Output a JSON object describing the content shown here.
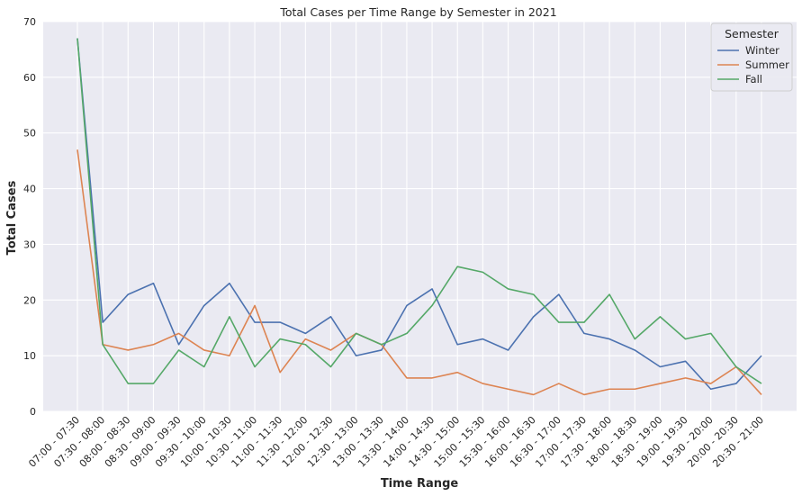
{
  "chart_data": {
    "type": "line",
    "title": "Total Cases per Time Range by Semester in 2021",
    "xlabel": "Time Range",
    "ylabel": "Total Cases",
    "ylim": [
      0,
      70
    ],
    "yticks": [
      0,
      10,
      20,
      30,
      40,
      50,
      60,
      70
    ],
    "grid": true,
    "legend_title": "Semester",
    "legend_position": "top-right",
    "categories": [
      "07:00 - 07:30",
      "07:30 - 08:00",
      "08:00 - 08:30",
      "08:30 - 09:00",
      "09:00 - 09:30",
      "09:30 - 10:00",
      "10:00 - 10:30",
      "10:30 - 11:00",
      "11:00 - 11:30",
      "11:30 - 12:00",
      "12:00 - 12:30",
      "12:30 - 13:00",
      "13:00 - 13:30",
      "13:30 - 14:00",
      "14:00 - 14:30",
      "14:30 - 15:00",
      "15:00 - 15:30",
      "15:30 - 16:00",
      "16:00 - 16:30",
      "16:30 - 17:00",
      "17:00 - 17:30",
      "17:30 - 18:00",
      "18:00 - 18:30",
      "18:30 - 19:00",
      "19:00 - 19:30",
      "19:30 - 20:00",
      "20:00 - 20:30",
      "20:30 - 21:00"
    ],
    "series": [
      {
        "name": "Winter",
        "color": "#4c72b0",
        "values": [
          67,
          16,
          21,
          23,
          12,
          19,
          23,
          16,
          16,
          14,
          17,
          10,
          11,
          19,
          22,
          12,
          13,
          11,
          17,
          21,
          14,
          13,
          11,
          8,
          9,
          4,
          5,
          10
        ]
      },
      {
        "name": "Summer",
        "color": "#dd8452",
        "values": [
          47,
          12,
          11,
          12,
          14,
          11,
          10,
          19,
          7,
          13,
          11,
          14,
          12,
          6,
          6,
          7,
          5,
          4,
          3,
          5,
          3,
          4,
          4,
          5,
          6,
          5,
          8,
          3
        ]
      },
      {
        "name": "Fall",
        "color": "#55a868",
        "values": [
          67,
          12,
          5,
          5,
          11,
          8,
          17,
          8,
          13,
          12,
          8,
          14,
          12,
          14,
          19,
          26,
          25,
          22,
          21,
          16,
          16,
          21,
          13,
          17,
          13,
          14,
          8,
          5
        ]
      }
    ]
  }
}
